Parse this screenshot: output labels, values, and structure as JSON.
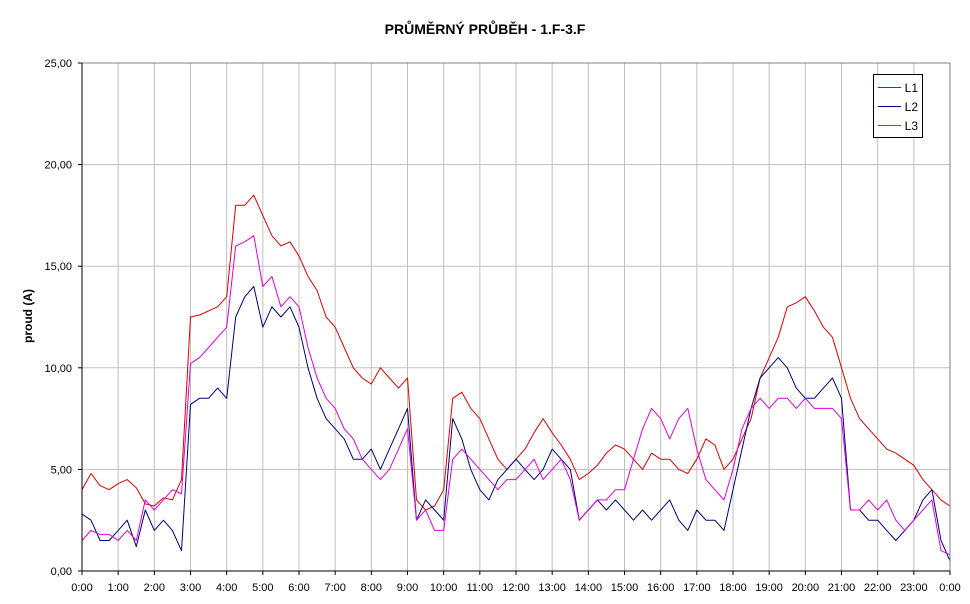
{
  "chart_data": {
    "type": "line",
    "title": "PRŮMĚRNÝ PRŮBĚH - 1.F-3.F",
    "xlabel": "",
    "ylabel": "proud (A)",
    "ylim": [
      0,
      25
    ],
    "yticks": [
      "0,00",
      "5,00",
      "10,00",
      "15,00",
      "20,00",
      "25,00"
    ],
    "xticks": [
      "0:00",
      "1:00",
      "2:00",
      "3:00",
      "4:00",
      "5:00",
      "6:00",
      "7:00",
      "8:00",
      "9:00",
      "10:00",
      "11:00",
      "12:00",
      "13:00",
      "14:00",
      "15:00",
      "16:00",
      "17:00",
      "18:00",
      "19:00",
      "20:00",
      "21:00",
      "22:00",
      "23:00",
      "0:00"
    ],
    "grid": true,
    "legend": "top-right",
    "x_hours": [
      0,
      0.25,
      0.5,
      0.75,
      1,
      1.25,
      1.5,
      1.75,
      2,
      2.25,
      2.5,
      2.75,
      3,
      3.25,
      3.5,
      3.75,
      4,
      4.25,
      4.5,
      4.75,
      5,
      5.25,
      5.5,
      5.75,
      6,
      6.25,
      6.5,
      6.75,
      7,
      7.25,
      7.5,
      7.75,
      8,
      8.25,
      8.5,
      8.75,
      9,
      9.25,
      9.5,
      9.75,
      10,
      10.25,
      10.5,
      10.75,
      11,
      11.25,
      11.5,
      11.75,
      12,
      12.25,
      12.5,
      12.75,
      13,
      13.25,
      13.5,
      13.75,
      14,
      14.25,
      14.5,
      14.75,
      15,
      15.25,
      15.5,
      15.75,
      16,
      16.25,
      16.5,
      16.75,
      17,
      17.25,
      17.5,
      17.75,
      18,
      18.25,
      18.5,
      18.75,
      19,
      19.25,
      19.5,
      19.75,
      20,
      20.25,
      20.5,
      20.75,
      21,
      21.25,
      21.5,
      21.75,
      22,
      22.25,
      22.5,
      22.75,
      23,
      23.25,
      23.5,
      23.75,
      24
    ],
    "series": [
      {
        "name": "L1",
        "color": "#e00000",
        "values": [
          4.0,
          4.8,
          4.2,
          4.0,
          4.3,
          4.5,
          4.1,
          3.3,
          3.2,
          3.6,
          3.5,
          4.5,
          12.5,
          12.6,
          12.8,
          13.0,
          13.5,
          18.0,
          18.0,
          18.5,
          17.5,
          16.5,
          16.0,
          16.2,
          15.5,
          14.5,
          13.8,
          12.5,
          12.0,
          11.0,
          10.0,
          9.5,
          9.2,
          10.0,
          9.5,
          9.0,
          9.5,
          3.5,
          3.0,
          3.2,
          4.0,
          8.5,
          8.8,
          8.0,
          7.5,
          6.5,
          5.5,
          5.0,
          5.5,
          6.0,
          6.8,
          7.5,
          6.8,
          6.2,
          5.5,
          4.5,
          4.8,
          5.2,
          5.8,
          6.2,
          6.0,
          5.5,
          5.0,
          5.8,
          5.5,
          5.5,
          5.0,
          4.8,
          5.5,
          6.5,
          6.2,
          5.0,
          5.5,
          6.5,
          7.5,
          9.5,
          10.5,
          11.5,
          13.0,
          13.2,
          13.5,
          12.8,
          12.0,
          11.5,
          10.0,
          8.5,
          7.5,
          7.0,
          6.5,
          6.0,
          5.8,
          5.5,
          5.2,
          4.5,
          4.0,
          3.5,
          3.2
        ]
      },
      {
        "name": "L2",
        "color": "#000080",
        "values": [
          2.8,
          2.5,
          1.5,
          1.5,
          2.0,
          2.5,
          1.2,
          3.0,
          2.0,
          2.5,
          2.0,
          1.0,
          8.2,
          8.5,
          8.5,
          9.0,
          8.5,
          12.5,
          13.5,
          14.0,
          12.0,
          13.0,
          12.5,
          13.0,
          12.0,
          10.0,
          8.5,
          7.5,
          7.0,
          6.5,
          5.5,
          5.5,
          6.0,
          5.0,
          6.0,
          7.0,
          8.0,
          2.5,
          3.5,
          3.0,
          2.5,
          7.5,
          6.5,
          5.0,
          4.0,
          3.5,
          4.5,
          5.0,
          5.5,
          5.0,
          4.5,
          5.0,
          6.0,
          5.5,
          5.0,
          2.5,
          3.0,
          3.5,
          3.0,
          3.5,
          3.0,
          2.5,
          3.0,
          2.5,
          3.0,
          3.5,
          2.5,
          2.0,
          3.0,
          2.5,
          2.5,
          2.0,
          4.0,
          6.0,
          8.0,
          9.5,
          10.0,
          10.5,
          10.0,
          9.0,
          8.5,
          8.5,
          9.0,
          9.5,
          8.5,
          3.0,
          3.0,
          2.5,
          2.5,
          2.0,
          1.5,
          2.0,
          2.5,
          3.5,
          4.0,
          1.5,
          0.5
        ]
      },
      {
        "name": "L3",
        "color": "#e000e0",
        "values": [
          1.5,
          2.0,
          1.8,
          1.8,
          1.5,
          2.0,
          1.5,
          3.5,
          3.0,
          3.5,
          4.0,
          3.8,
          10.2,
          10.5,
          11.0,
          11.5,
          12.0,
          16.0,
          16.2,
          16.5,
          14.0,
          14.5,
          13.0,
          13.5,
          13.0,
          11.0,
          9.5,
          8.5,
          8.0,
          7.0,
          6.5,
          5.5,
          5.0,
          4.5,
          5.0,
          6.0,
          7.0,
          2.5,
          3.0,
          2.0,
          2.0,
          5.5,
          6.0,
          5.5,
          5.0,
          4.5,
          4.0,
          4.5,
          4.5,
          5.0,
          5.5,
          4.5,
          5.0,
          5.5,
          4.5,
          2.5,
          3.0,
          3.5,
          3.5,
          4.0,
          4.0,
          5.5,
          7.0,
          8.0,
          7.5,
          6.5,
          7.5,
          8.0,
          6.0,
          4.5,
          4.0,
          3.5,
          5.0,
          7.0,
          8.0,
          8.5,
          8.0,
          8.5,
          8.5,
          8.0,
          8.5,
          8.0,
          8.0,
          8.0,
          7.5,
          3.0,
          3.0,
          3.5,
          3.0,
          3.5,
          2.5,
          2.0,
          2.5,
          3.0,
          3.5,
          1.0,
          0.8
        ]
      }
    ]
  }
}
